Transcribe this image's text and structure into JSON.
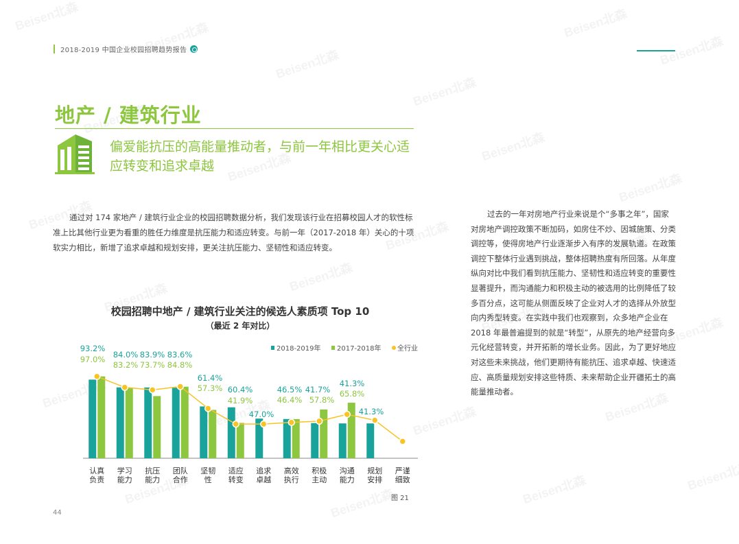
{
  "header": {
    "text": "2018-2019 中国企业校园招聘趋势报告"
  },
  "title": "地产 / 建筑行业",
  "subtitle": "偏爱能抗压的高能量推动者，与前一年相比更关心适应转变和追求卓越",
  "left_paragraph": "通过对 174 家地产 / 建筑行业企业的校园招聘数据分析，我们发现该行业在招募校园人才的软性标准上比其他行业更为看重的胜任力维度是抗压能力和适应转变。与前一年（2017-2018 年）关心的十项软实力相比，新增了追求卓越和规划安排，更关注抗压能力、坚韧性和适应转变。",
  "right_paragraph": "过去的一年对房地产行业来说是个“多事之年”，国家对房地产调控政策不断加码，如房住不炒、因城施策、分类调控等，使得房地产行业逐渐步入有序的发展轨道。在政策调控下整体行业遇到挑战，整体招聘热度有所回落。从年度纵向对比中我们看到抗压能力、坚韧性和适应转变的重要性显著提升，而沟通能力和积极主动的被选用的比例降低了较多百分点，这可能从侧面反映了企业对人才的选择从外放型向内秀型转变。在实践中我们也观察到，众多地产企业在 2018 年最普遍提到的就是“转型”，从原先的地产经营向多元化经营转变，并开拓新的增长业务。因此，为了更好地应对这些未来挑战，他们更期待有能抗压、追求卓越、快速适应、高质量规划安排这些特质、未来帮助企业开疆拓土的高能量推动者。",
  "figure_label": "图 21",
  "page_number": "44",
  "watermark": "Beisen北森",
  "colors": {
    "teal": "#1aa39b",
    "green": "#8dc63f",
    "yellow": "#f7c325"
  },
  "chart_data": {
    "type": "bar",
    "title": "校园招聘中地产 / 建筑行业关注的候选人素质项 Top 10",
    "subtitle": "（最近 2 年对比）",
    "categories": [
      [
        "认真",
        "负责"
      ],
      [
        "学习",
        "能力"
      ],
      [
        "抗压",
        "能力"
      ],
      [
        "团队",
        "合作"
      ],
      [
        "坚韧",
        "性"
      ],
      [
        "适应",
        "转变"
      ],
      [
        "追求",
        "卓越"
      ],
      [
        "高效",
        "执行"
      ],
      [
        "积极",
        "主动"
      ],
      [
        "沟通",
        "能力"
      ],
      [
        "规划",
        "安排"
      ],
      [
        "严谨",
        "细致"
      ]
    ],
    "series": [
      {
        "name": "2018-2019年",
        "values": [
          93.2,
          84.0,
          83.9,
          83.6,
          61.4,
          60.4,
          47.0,
          46.5,
          41.7,
          41.3,
          41.3,
          null
        ],
        "labels": [
          "93.2%",
          "84.0%",
          "83.9%",
          "83.6%",
          "61.4%",
          "60.4%",
          "47.0%",
          "46.5%",
          "41.7%",
          "41.3%",
          "41.3%",
          ""
        ]
      },
      {
        "name": "2017-2018年",
        "values": [
          97.0,
          83.2,
          73.7,
          84.8,
          57.3,
          41.9,
          null,
          46.4,
          57.8,
          65.8,
          null,
          null
        ],
        "labels": [
          "97.0%",
          "83.2%",
          "73.7%",
          "84.8%",
          "57.3%",
          "41.9%",
          "",
          "46.4%",
          "57.8%",
          "65.8%",
          "",
          ""
        ]
      },
      {
        "name": "全行业",
        "values": [
          97.0,
          84.0,
          81.0,
          85.0,
          59.0,
          40.5,
          40.5,
          42.5,
          44.0,
          52.0,
          45.0,
          20.0
        ]
      }
    ],
    "ylim": [
      0,
      100
    ],
    "legend": "top-right"
  }
}
